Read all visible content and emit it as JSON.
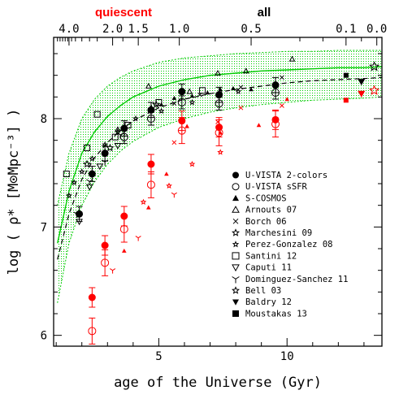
{
  "chart_data": {
    "type": "scatter",
    "xlabel": "age of the Universe (Gyr)",
    "ylabel": "log ( ρ* [M⊙Mpc⁻³] )",
    "xlim": [
      0.9,
      13.7
    ],
    "ylim": [
      5.9,
      8.75
    ],
    "x_ticks": [
      5,
      10
    ],
    "y_ticks": [
      6,
      7,
      8
    ],
    "top_axis": {
      "quiescent_label": "quiescent",
      "all_label": "all",
      "ticks": [
        {
          "label": "4.0",
          "age": 1.5
        },
        {
          "label": "2.0",
          "age": 3.2
        },
        {
          "label": "1.5",
          "age": 4.2
        },
        {
          "label": "1.0",
          "age": 5.8
        },
        {
          "label": "0.5",
          "age": 8.6
        },
        {
          "label": "0.1",
          "age": 12.3
        },
        {
          "label": "0.0",
          "age": 13.5
        }
      ]
    },
    "colors": {
      "all": "#000000",
      "quiescent": "#ff0000",
      "green": "#00cc00"
    },
    "legend": [
      {
        "label": "U-VISTA 2-colors",
        "marker": "filled-circle"
      },
      {
        "label": "U-VISTA sSFR",
        "marker": "open-circle"
      },
      {
        "label": "S-COSMOS",
        "marker": "filled-triangle"
      },
      {
        "label": "Arnouts 07",
        "marker": "open-triangle"
      },
      {
        "label": "Borch 06",
        "marker": "cross"
      },
      {
        "label": "Marchesini 09",
        "marker": "open-star"
      },
      {
        "label": "Perez-Gonzalez 08",
        "marker": "small-star"
      },
      {
        "label": "Santini 12",
        "marker": "open-square"
      },
      {
        "label": "Caputi 11",
        "marker": "open-down-triangle"
      },
      {
        "label": "Dominguez-Sanchez 11",
        "marker": "tripod"
      },
      {
        "label": "Bell 03",
        "marker": "open-star"
      },
      {
        "label": "Baldry 12",
        "marker": "filled-down-triangle"
      },
      {
        "label": "Moustakas 13",
        "marker": "filled-square"
      }
    ],
    "series": [
      {
        "group": "all",
        "marker": "filled-circle",
        "size": 4.5,
        "err": 0.07,
        "points": [
          [
            1.9,
            7.12
          ],
          [
            2.4,
            7.49
          ],
          [
            2.9,
            7.68
          ],
          [
            3.65,
            7.91
          ],
          [
            4.7,
            8.08
          ],
          [
            5.9,
            8.25
          ],
          [
            7.35,
            8.22
          ],
          [
            9.55,
            8.31
          ]
        ]
      },
      {
        "group": "all",
        "marker": "open-circle",
        "size": 4.5,
        "err": 0.06,
        "points": [
          [
            3.65,
            7.83
          ],
          [
            4.7,
            8.0
          ],
          [
            5.9,
            8.15
          ],
          [
            7.35,
            8.14
          ],
          [
            9.55,
            8.24
          ]
        ]
      },
      {
        "group": "all",
        "marker": "filled-triangle",
        "size": 2.8,
        "points": [
          [
            4.7,
            8.11
          ],
          [
            5.1,
            8.13
          ],
          [
            5.6,
            8.19
          ],
          [
            6.3,
            8.21
          ],
          [
            6.9,
            8.24
          ],
          [
            7.4,
            8.27
          ],
          [
            7.9,
            8.28
          ],
          [
            8.6,
            8.27
          ],
          [
            9.6,
            8.31
          ]
        ]
      },
      {
        "group": "all",
        "marker": "open-triangle",
        "size": 3,
        "points": [
          [
            3.4,
            7.9
          ],
          [
            4.6,
            8.3
          ],
          [
            6.2,
            8.25
          ],
          [
            7.3,
            8.42
          ],
          [
            8.4,
            8.44
          ],
          [
            10.2,
            8.55
          ]
        ]
      },
      {
        "group": "all",
        "marker": "cross",
        "size": 2.5,
        "points": [
          [
            5.6,
            8.14
          ],
          [
            6.6,
            8.22
          ],
          [
            8.2,
            8.29
          ],
          [
            9.8,
            8.38
          ]
        ]
      },
      {
        "group": "all",
        "marker": "open-star",
        "size": 4,
        "points": [
          [
            2.2,
            7.58
          ],
          [
            3.1,
            7.73
          ],
          [
            4.9,
            8.13
          ]
        ]
      },
      {
        "group": "all",
        "marker": "small-star",
        "size": 2.8,
        "points": [
          [
            1.5,
            7.29
          ],
          [
            1.7,
            7.41
          ],
          [
            2.0,
            7.51
          ],
          [
            2.4,
            7.63
          ],
          [
            2.9,
            7.76
          ],
          [
            3.4,
            7.88
          ],
          [
            4.1,
            8.0
          ],
          [
            5.1,
            8.07
          ],
          [
            6.3,
            8.15
          ],
          [
            8.1,
            8.25
          ]
        ]
      },
      {
        "group": "all",
        "marker": "open-square",
        "size": 3.5,
        "points": [
          [
            1.4,
            7.49
          ],
          [
            2.2,
            7.73
          ],
          [
            2.6,
            8.04
          ],
          [
            3.3,
            7.83
          ],
          [
            3.8,
            7.94
          ],
          [
            5.0,
            8.15
          ],
          [
            6.7,
            8.26
          ]
        ]
      },
      {
        "group": "all",
        "marker": "open-down-triangle",
        "size": 3.5,
        "points": [
          [
            1.9,
            7.05
          ],
          [
            2.3,
            7.37
          ],
          [
            2.7,
            7.56
          ],
          [
            3.4,
            7.75
          ]
        ]
      },
      {
        "group": "all",
        "marker": "tripod",
        "size": 3.5,
        "points": [
          [
            1.8,
            7.12
          ],
          [
            2.3,
            7.42
          ],
          [
            2.9,
            7.6
          ],
          [
            3.5,
            7.85
          ]
        ]
      },
      {
        "group": "all",
        "marker": "open-star",
        "size": 5.5,
        "points": [
          [
            13.4,
            8.48
          ]
        ]
      },
      {
        "group": "all",
        "marker": "filled-down-triangle",
        "size": 4.5,
        "points": [
          [
            12.9,
            8.34
          ]
        ]
      },
      {
        "group": "all",
        "marker": "filled-square",
        "size": 3,
        "points": [
          [
            12.3,
            8.4
          ]
        ]
      },
      {
        "group": "quiescent",
        "marker": "filled-circle",
        "size": 4.5,
        "err": 0.09,
        "points": [
          [
            2.4,
            6.35
          ],
          [
            2.9,
            6.83
          ],
          [
            3.65,
            7.1
          ],
          [
            4.7,
            7.58
          ],
          [
            5.9,
            7.98
          ],
          [
            7.35,
            7.92
          ],
          [
            9.55,
            7.99
          ]
        ]
      },
      {
        "group": "quiescent",
        "marker": "open-circle",
        "size": 4.5,
        "err": 0.12,
        "points": [
          [
            2.4,
            6.04
          ],
          [
            2.9,
            6.67
          ],
          [
            3.65,
            6.98
          ],
          [
            4.7,
            7.39
          ],
          [
            5.9,
            7.89
          ],
          [
            7.35,
            7.87
          ],
          [
            9.55,
            7.95
          ]
        ]
      },
      {
        "group": "quiescent",
        "marker": "filled-triangle",
        "size": 2.8,
        "points": [
          [
            3.65,
            6.78
          ],
          [
            4.6,
            7.18
          ],
          [
            5.3,
            7.49
          ],
          [
            6.1,
            7.93
          ],
          [
            7.4,
            7.87
          ],
          [
            8.9,
            7.94
          ],
          [
            10.0,
            8.18
          ],
          [
            12.3,
            8.17
          ]
        ]
      },
      {
        "group": "quiescent",
        "marker": "cross",
        "size": 2.5,
        "points": [
          [
            5.6,
            7.78
          ],
          [
            7.3,
            7.97
          ],
          [
            8.2,
            8.1
          ],
          [
            9.8,
            8.12
          ]
        ]
      },
      {
        "group": "quiescent",
        "marker": "small-star",
        "size": 2.8,
        "points": [
          [
            4.4,
            7.23
          ],
          [
            5.4,
            7.38
          ],
          [
            6.3,
            7.58
          ],
          [
            7.4,
            7.69
          ]
        ]
      },
      {
        "group": "quiescent",
        "marker": "tripod",
        "size": 3,
        "points": [
          [
            3.2,
            6.6
          ],
          [
            4.2,
            6.9
          ],
          [
            5.6,
            7.3
          ]
        ]
      },
      {
        "group": "quiescent",
        "marker": "open-star",
        "size": 5.5,
        "points": [
          [
            13.4,
            8.26
          ]
        ]
      },
      {
        "group": "quiescent",
        "marker": "filled-down-triangle",
        "size": 4.5,
        "points": [
          [
            12.9,
            8.23
          ]
        ]
      },
      {
        "group": "quiescent",
        "marker": "filled-square",
        "size": 3,
        "points": [
          [
            12.3,
            8.17
          ]
        ]
      }
    ],
    "curves": {
      "dashed_fit": {
        "x": [
          1.05,
          1.5,
          2.0,
          2.5,
          3.0,
          3.5,
          4.0,
          5.0,
          6.0,
          7.0,
          8.0,
          9.0,
          10.0,
          11.0,
          12.0,
          13.0,
          13.7
        ],
        "y": [
          6.7,
          7.12,
          7.44,
          7.64,
          7.78,
          7.89,
          7.98,
          8.1,
          8.18,
          8.23,
          8.27,
          8.3,
          8.33,
          8.35,
          8.36,
          8.37,
          8.38
        ]
      },
      "green_fit": {
        "x": [
          1.05,
          1.5,
          2.0,
          2.5,
          3.0,
          3.5,
          4.0,
          5.0,
          6.0,
          7.0,
          8.0,
          9.0,
          10.0,
          11.0,
          12.0,
          13.0,
          13.7
        ],
        "y": [
          6.85,
          7.33,
          7.68,
          7.88,
          8.02,
          8.12,
          8.2,
          8.3,
          8.36,
          8.4,
          8.42,
          8.44,
          8.45,
          8.46,
          8.47,
          8.47,
          8.48
        ]
      },
      "green_band_upper": {
        "x": [
          1.05,
          1.5,
          2.0,
          2.5,
          3.0,
          3.5,
          4.0,
          5.0,
          6.0,
          7.0,
          8.0,
          9.0,
          10.0,
          11.0,
          12.0,
          13.0,
          13.7
        ],
        "y": [
          7.2,
          7.68,
          8.0,
          8.18,
          8.3,
          8.38,
          8.44,
          8.52,
          8.56,
          8.58,
          8.6,
          8.61,
          8.62,
          8.62,
          8.63,
          8.63,
          8.63
        ]
      },
      "green_band_lower": {
        "x": [
          1.05,
          1.5,
          2.0,
          2.5,
          3.0,
          3.5,
          4.0,
          5.0,
          6.0,
          7.0,
          8.0,
          9.0,
          10.0,
          11.0,
          12.0,
          13.0,
          13.7
        ],
        "y": [
          6.3,
          6.85,
          7.2,
          7.42,
          7.58,
          7.7,
          7.79,
          7.92,
          8.0,
          8.06,
          8.1,
          8.13,
          8.15,
          8.17,
          8.18,
          8.19,
          8.2
        ]
      }
    }
  }
}
